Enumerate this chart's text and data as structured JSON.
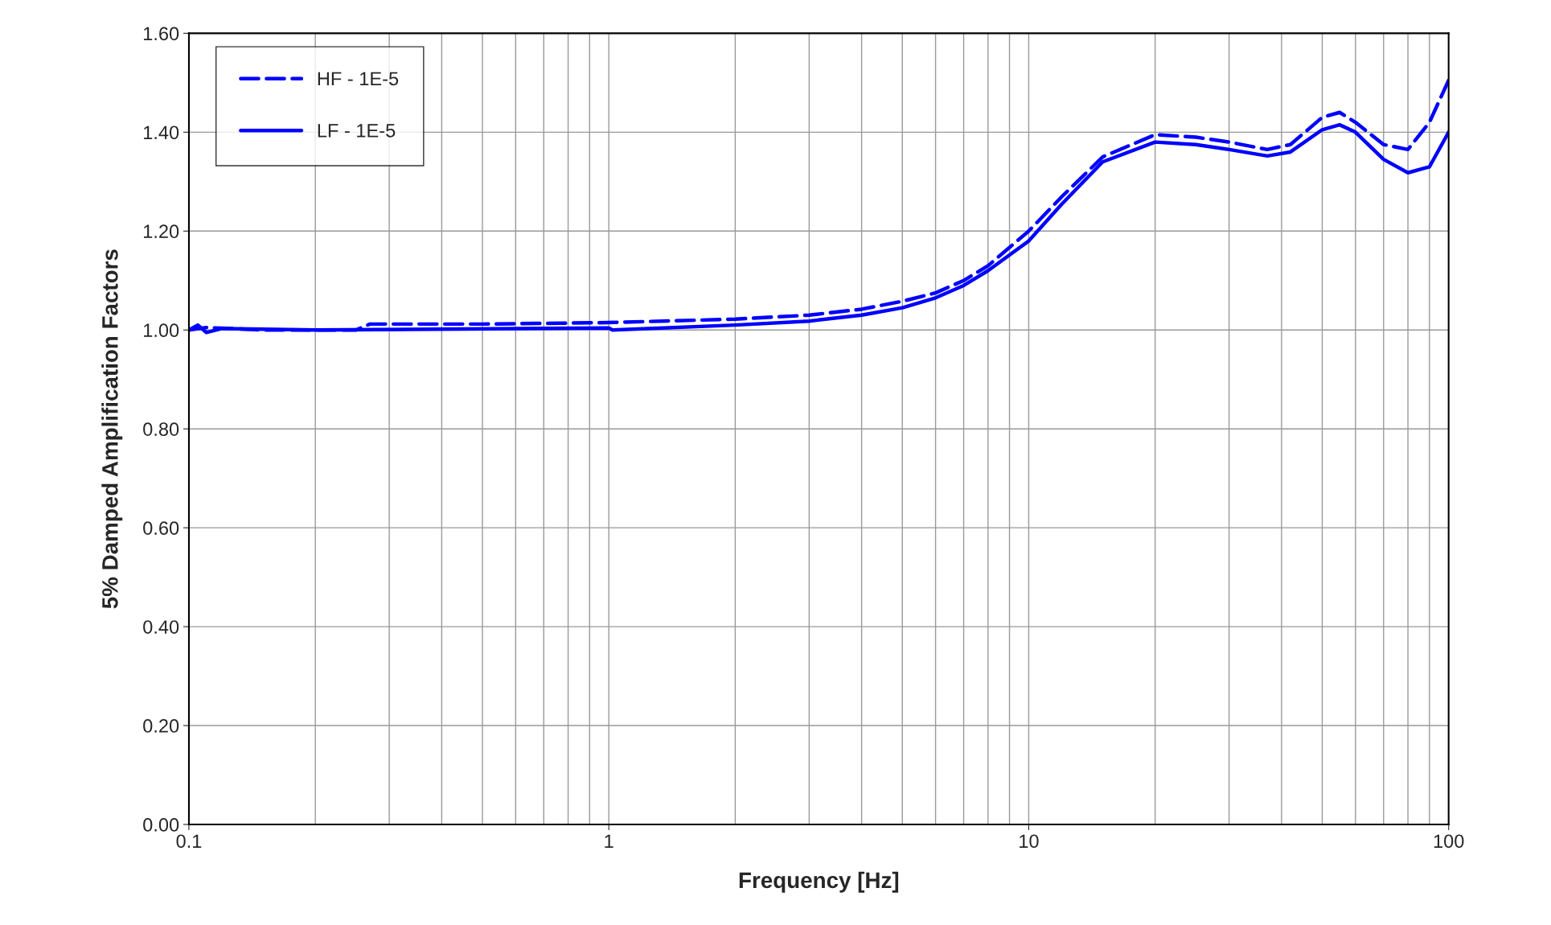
{
  "chart_data": {
    "type": "line",
    "xlabel": "Frequency [Hz]",
    "ylabel": "5% Damped Amplification Factors",
    "log": "x",
    "xlim": [
      0.1,
      100
    ],
    "xticks": [
      0.1,
      1,
      10,
      100
    ],
    "ylim": [
      0,
      1.6
    ],
    "yticks": [
      {
        "value": 0,
        "label": "0.00"
      },
      {
        "value": 0.2,
        "label": "0.20"
      },
      {
        "value": 0.4,
        "label": "0.40"
      },
      {
        "value": 0.6,
        "label": "0.60"
      },
      {
        "value": 0.8,
        "label": "0.80"
      },
      {
        "value": 1.0,
        "label": "1.00"
      },
      {
        "value": 1.2,
        "label": "1.20"
      },
      {
        "value": 1.4,
        "label": "1.40"
      },
      {
        "value": 1.6,
        "label": "1.60"
      }
    ],
    "grid": true,
    "legend": "top left",
    "series": [
      {
        "name": "HF - 1E-5",
        "color": "#0000ff",
        "line_style": "dashed",
        "x": [
          0.1,
          0.11,
          0.15,
          0.25,
          0.27,
          0.5,
          1,
          2,
          3,
          4,
          5,
          6,
          7,
          8,
          10,
          12,
          15,
          20,
          25,
          30,
          37,
          42,
          50,
          55,
          60,
          70,
          80,
          90,
          100
        ],
        "values": [
          1.0,
          1.005,
          1.0,
          1.0,
          1.012,
          1.012,
          1.015,
          1.022,
          1.03,
          1.042,
          1.058,
          1.075,
          1.1,
          1.13,
          1.2,
          1.27,
          1.35,
          1.395,
          1.39,
          1.38,
          1.365,
          1.375,
          1.43,
          1.44,
          1.42,
          1.375,
          1.365,
          1.42,
          1.505
        ]
      },
      {
        "name": "LF - 1E-5",
        "color": "#0000ff",
        "line_style": "solid",
        "x": [
          0.1,
          0.105,
          0.11,
          0.12,
          0.2,
          1,
          1.02,
          2,
          3,
          4,
          5,
          6,
          7,
          8,
          10,
          12,
          15,
          20,
          25,
          30,
          37,
          42,
          50,
          55,
          60,
          70,
          80,
          90,
          100
        ],
        "values": [
          1.0,
          1.01,
          0.995,
          1.003,
          1.0,
          1.004,
          1.0,
          1.01,
          1.018,
          1.03,
          1.045,
          1.065,
          1.09,
          1.12,
          1.18,
          1.255,
          1.34,
          1.38,
          1.375,
          1.365,
          1.352,
          1.36,
          1.405,
          1.415,
          1.4,
          1.345,
          1.318,
          1.33,
          1.4
        ]
      }
    ]
  }
}
